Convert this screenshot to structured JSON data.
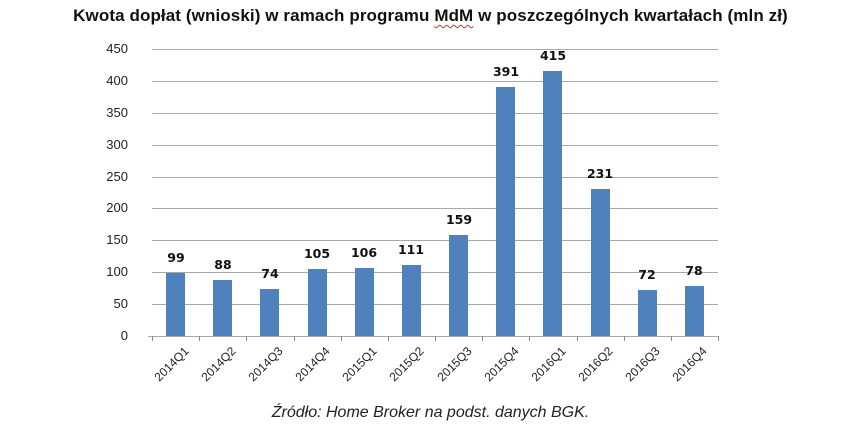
{
  "title": {
    "before": "Kwota dopłat (wnioski) w ramach programu ",
    "mdm": "MdM",
    "after": " w poszczególnych kwartałach (mln zł)"
  },
  "source": "Źródło: Home Broker na podst. danych BGK.",
  "colors": {
    "bar": "#4f81bd",
    "grid": "#a8a8a8"
  },
  "chart_data": {
    "type": "bar",
    "title": "Kwota dopłat (wnioski) w ramach programu MdM w poszczególnych kwartałach (mln zł)",
    "xlabel": "",
    "ylabel": "",
    "ylim": [
      0,
      450
    ],
    "yticks": [
      0,
      50,
      100,
      150,
      200,
      250,
      300,
      350,
      400,
      450
    ],
    "grid": true,
    "legend": null,
    "categories": [
      "2014Q1",
      "2014Q2",
      "2014Q3",
      "2014Q4",
      "2015Q1",
      "2015Q2",
      "2015Q3",
      "2015Q4",
      "2016Q1",
      "2016Q2",
      "2016Q3",
      "2016Q4"
    ],
    "values": [
      99,
      88,
      74,
      105,
      106,
      111,
      159,
      391,
      415,
      231,
      72,
      78
    ],
    "data_labels": true,
    "source": "Źródło: Home Broker na podst. danych BGK."
  }
}
